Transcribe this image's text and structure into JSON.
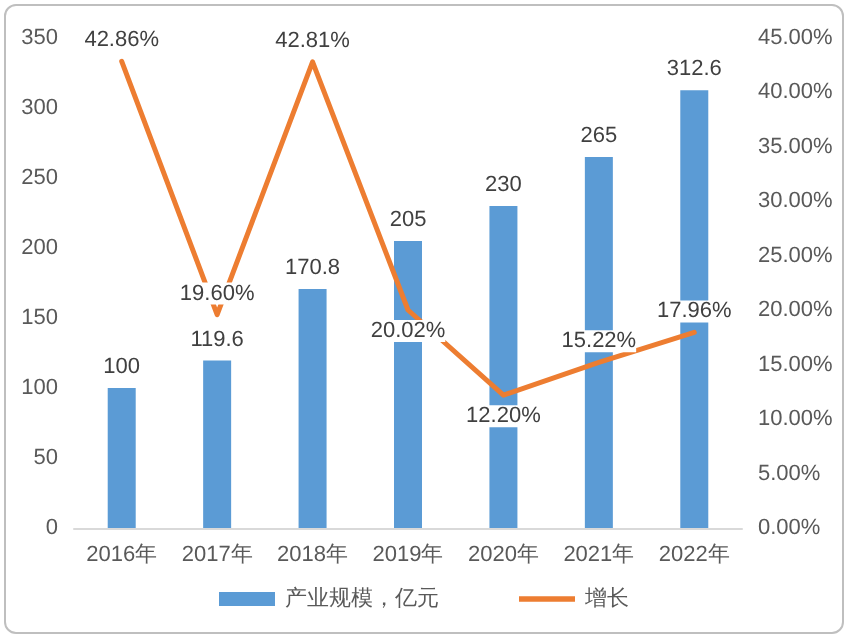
{
  "chart_data": {
    "type": "bar",
    "categories": [
      "2016年",
      "2017年",
      "2018年",
      "2019年",
      "2020年",
      "2021年",
      "2022年"
    ],
    "series": [
      {
        "name": "产业规模，亿元",
        "color": "#5b9bd5",
        "values": [
          100,
          119.6,
          170.8,
          205,
          230,
          265,
          312.6
        ],
        "value_labels": [
          "100",
          "119.6",
          "170.8",
          "205",
          "230",
          "265",
          "312.6"
        ]
      },
      {
        "name": "增长",
        "type": "line",
        "axis": "y2",
        "color": "#ed7d31",
        "values": [
          42.86,
          19.6,
          42.81,
          20.02,
          12.2,
          15.22,
          17.96
        ],
        "value_labels": [
          "42.86%",
          "19.60%",
          "42.81%",
          "20.02%",
          "12.20%",
          "15.22%",
          "17.96%"
        ]
      }
    ],
    "ylim": [
      0,
      350
    ],
    "yticks": [
      0,
      50,
      100,
      150,
      200,
      250,
      300,
      350
    ],
    "y2lim": [
      0,
      45
    ],
    "y2ticks": [
      {
        "value": 0,
        "label": "0.00%"
      },
      {
        "value": 5,
        "label": "5.00%"
      },
      {
        "value": 10,
        "label": "10.00%"
      },
      {
        "value": 15,
        "label": "15.00%"
      },
      {
        "value": 20,
        "label": "20.00%"
      },
      {
        "value": 25,
        "label": "25.00%"
      },
      {
        "value": 30,
        "label": "30.00%"
      },
      {
        "value": 35,
        "label": "35.00%"
      },
      {
        "value": 40,
        "label": "40.00%"
      },
      {
        "value": 45,
        "label": "45.00%"
      }
    ],
    "legend": "bottom",
    "grid": false,
    "marker": "none",
    "line_style": "solid"
  }
}
